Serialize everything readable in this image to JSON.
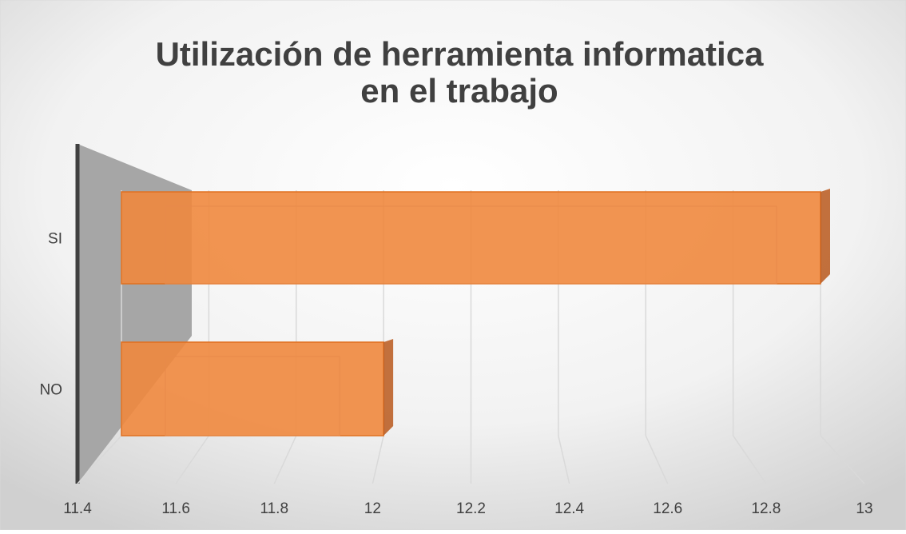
{
  "chart_data": {
    "type": "bar",
    "orientation": "horizontal",
    "title": [
      "Utilización de herramienta informatica",
      "en el trabajo"
    ],
    "categories": [
      "SI",
      "NO"
    ],
    "values": [
      13,
      12
    ],
    "color": "#f0883e",
    "xlim": [
      11.4,
      13
    ],
    "xticks": [
      11.4,
      11.6,
      11.8,
      12,
      12.2,
      12.4,
      12.6,
      12.8,
      13
    ],
    "grid": true
  }
}
